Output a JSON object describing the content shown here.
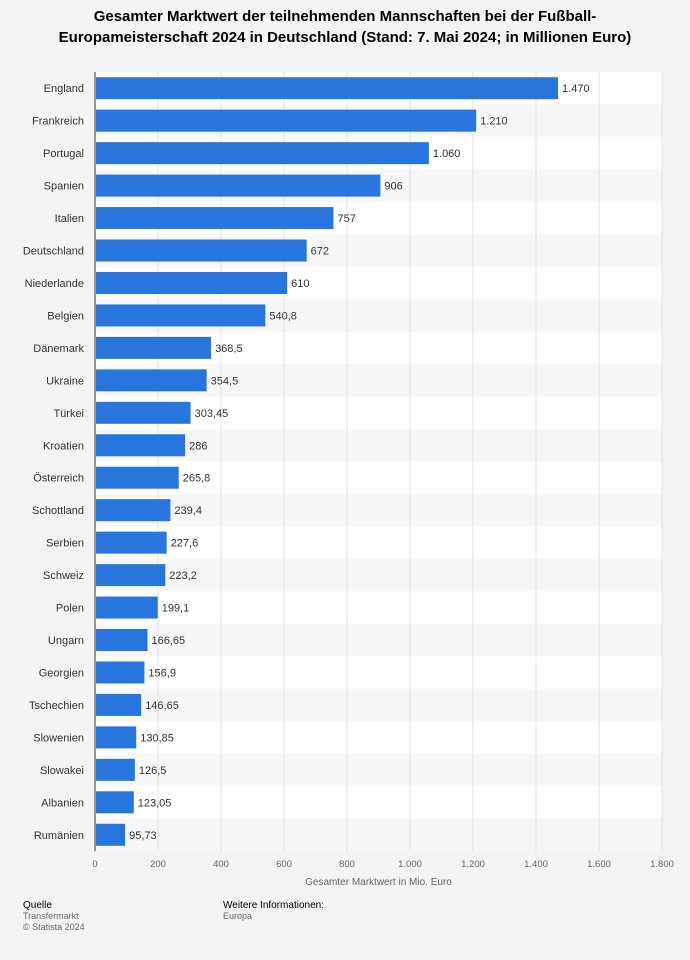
{
  "chart_data": {
    "type": "bar",
    "orientation": "horizontal",
    "title_lines": [
      "Gesamter Marktwert der teilnehmenden Mannschaften bei der Fußball-",
      "Europameisterschaft 2024 in Deutschland (Stand: 7. Mai 2024; in Millionen Euro)"
    ],
    "categories": [
      "England",
      "Frankreich",
      "Portugal",
      "Spanien",
      "Italien",
      "Deutschland",
      "Niederlande",
      "Belgien",
      "Dänemark",
      "Ukraine",
      "Türkei",
      "Kroatien",
      "Österreich",
      "Schottland",
      "Serbien",
      "Schweiz",
      "Polen",
      "Ungarn",
      "Georgien",
      "Tschechien",
      "Slowenien",
      "Slowakei",
      "Albanien",
      "Rumänien"
    ],
    "values": [
      1470,
      1210,
      1060,
      906,
      757,
      672,
      610,
      540.8,
      368.5,
      354.5,
      303.45,
      286,
      265.8,
      239.4,
      227.6,
      223.2,
      199.1,
      166.65,
      156.9,
      146.65,
      130.85,
      126.5,
      123.05,
      95.73
    ],
    "value_labels": [
      "1.470",
      "1.210",
      "1.060",
      "906",
      "757",
      "672",
      "610",
      "540,8",
      "368,5",
      "354,5",
      "303,45",
      "286",
      "265,8",
      "239,4",
      "227,6",
      "223,2",
      "199,1",
      "166,65",
      "156,9",
      "146,65",
      "130,85",
      "126,5",
      "123,05",
      "95,73"
    ],
    "xlabel": "Gesamter Marktwert in Mio. Euro",
    "xlim": [
      0,
      1800
    ],
    "xticks": [
      0,
      200,
      400,
      600,
      800,
      1000,
      1200,
      1400,
      1600,
      1800
    ],
    "xtick_labels": [
      "0",
      "200",
      "400",
      "600",
      "800",
      "1.000",
      "1.200",
      "1.400",
      "1.600",
      "1.800"
    ],
    "grid": true,
    "bar_color": "#2876dd"
  },
  "footer": {
    "source_label": "Quelle",
    "source_name": "Transfermarkt",
    "copyright": "© Statista 2024",
    "info_label": "Weitere Informationen:",
    "info_value": "Europa"
  }
}
